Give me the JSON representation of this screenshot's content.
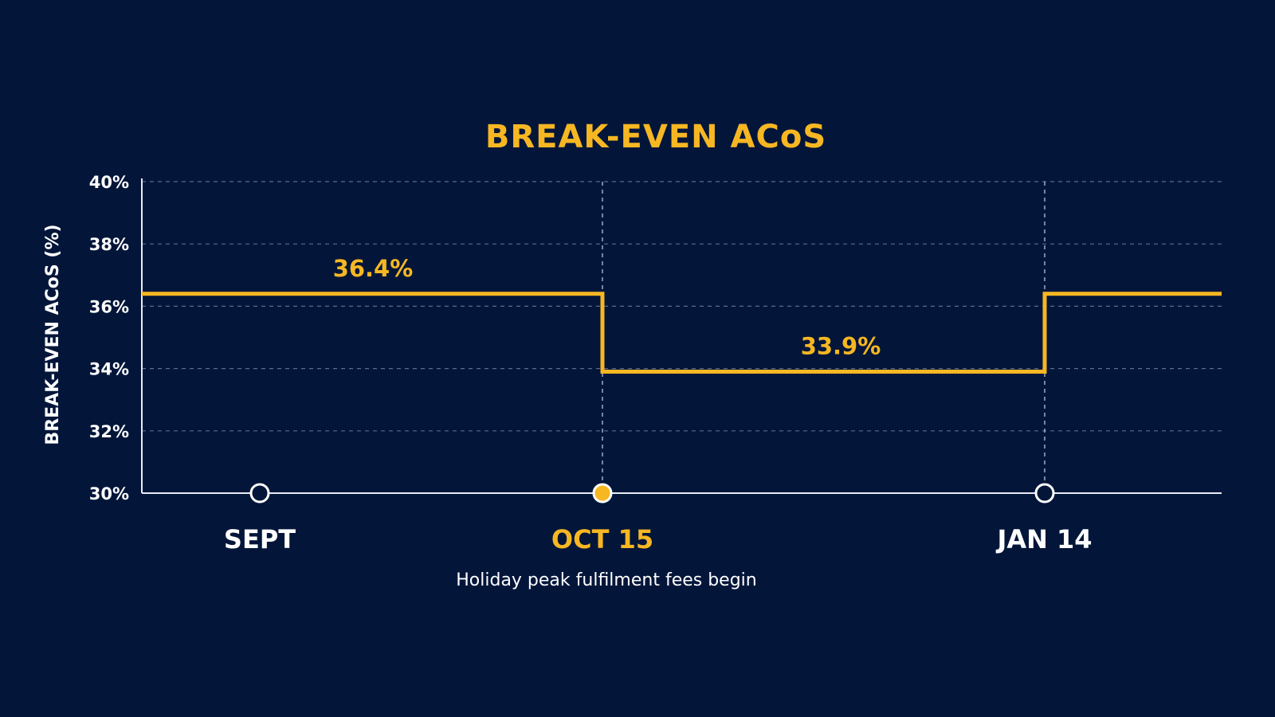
{
  "chart_data": {
    "type": "line",
    "step": true,
    "title": "BREAK-EVEN ACoS",
    "ylabel": "BREAK-EVEN ACoS (%)",
    "xlabel": "",
    "ylim": [
      30,
      40
    ],
    "yticks": [
      30,
      32,
      34,
      36,
      38,
      40
    ],
    "ytick_labels": [
      "30%",
      "32%",
      "34%",
      "36%",
      "38%",
      "40%"
    ],
    "grid": true,
    "x_markers": [
      {
        "label": "SEPT",
        "highlight": false,
        "vline": false
      },
      {
        "label": "OCT 15",
        "highlight": true,
        "vline": true
      },
      {
        "label": "JAN 14",
        "highlight": false,
        "vline": true
      }
    ],
    "series": [
      {
        "segments": [
          {
            "from": "start",
            "to": "OCT 15",
            "value": 36.4
          },
          {
            "from": "OCT 15",
            "to": "JAN 14",
            "value": 33.9
          },
          {
            "from": "JAN 14",
            "to": "end",
            "value": 36.4
          }
        ]
      }
    ],
    "data_labels": [
      {
        "segment": 0,
        "text": "36.4%"
      },
      {
        "segment": 1,
        "text": "33.9%"
      }
    ],
    "annotation": {
      "text": "Holiday peak fulfilment fees begin",
      "anchor": "OCT 15"
    }
  },
  "colors": {
    "background": "#03163a",
    "accent": "#f7b722",
    "text": "#ffffff",
    "grid": "#5a6a8e",
    "axis": "#e8ecf4"
  }
}
